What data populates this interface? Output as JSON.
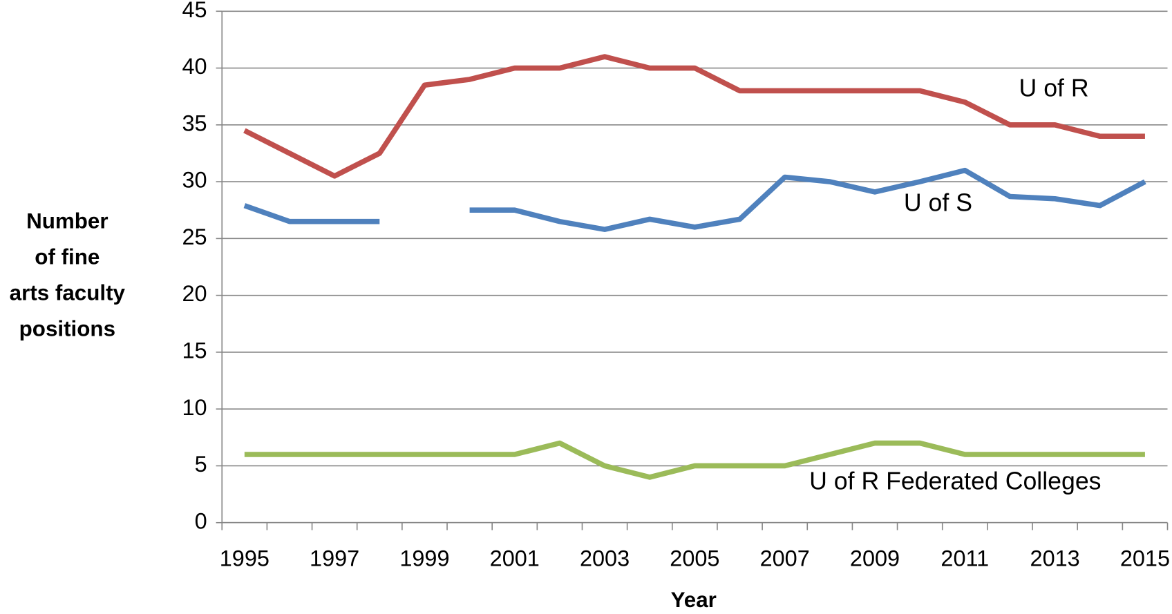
{
  "chart_data": {
    "type": "line",
    "x_label": "Year",
    "y_label": [
      "Number",
      "of fine",
      "arts faculty",
      "positions"
    ],
    "categories": [
      "1995",
      null,
      "1997",
      null,
      "1999",
      null,
      "2001",
      null,
      "2003",
      null,
      "2005",
      null,
      "2007",
      null,
      "2009",
      null,
      "2011",
      null,
      "2013",
      null,
      "2015"
    ],
    "series": [
      {
        "name": "U of R",
        "color": "#c0504d",
        "values": [
          34.5,
          32.5,
          30.5,
          32.5,
          38.5,
          39,
          40,
          40,
          41,
          40,
          40,
          38,
          38,
          38,
          38,
          38,
          37,
          35,
          35,
          34,
          34
        ]
      },
      {
        "name": "U of S",
        "color": "#4f81bd",
        "values": [
          27.9,
          26.5,
          26.5,
          26.5,
          null,
          27.5,
          27.5,
          26.5,
          25.8,
          26.7,
          26,
          26.7,
          30.4,
          30,
          29.1,
          30,
          31,
          28.7,
          28.5,
          27.9,
          30
        ]
      },
      {
        "name": "U of R Federated Colleges",
        "color": "#9bbb59",
        "values": [
          6,
          6,
          6,
          6,
          6,
          6,
          6,
          7,
          5,
          4,
          5,
          5,
          5,
          6,
          7,
          7,
          6,
          6,
          6,
          6,
          6
        ]
      }
    ],
    "ylim": [
      0,
      45
    ],
    "yticks": [
      0,
      5,
      10,
      15,
      20,
      25,
      30,
      35,
      40,
      45
    ],
    "grid": true
  }
}
